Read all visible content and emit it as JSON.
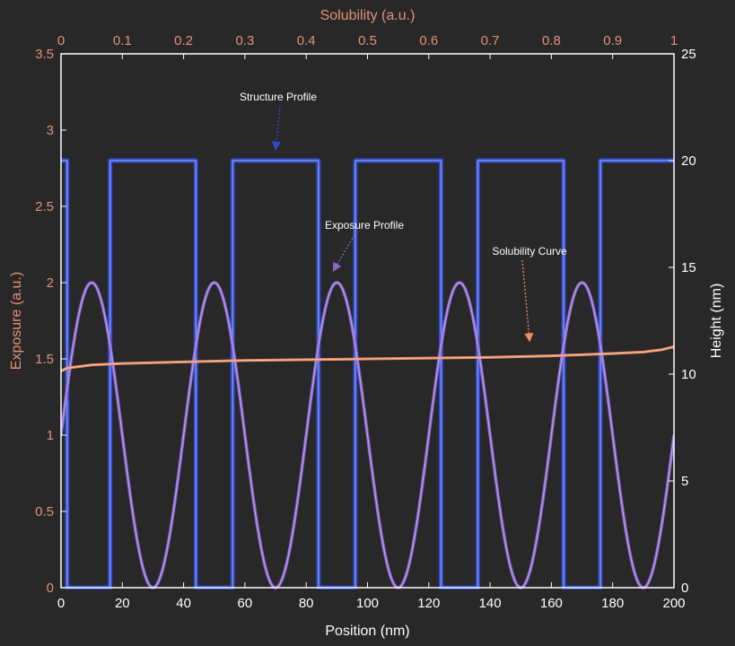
{
  "chart_data": {
    "type": "line",
    "title": "",
    "xlabel": "Position (nm)",
    "xlim": [
      0,
      200
    ],
    "xticks": [
      0,
      20,
      40,
      60,
      80,
      100,
      120,
      140,
      160,
      180,
      200
    ],
    "x2label": "Solubility (a.u.)",
    "x2lim": [
      0,
      1
    ],
    "x2ticks": [
      "0",
      "0.1",
      "0.2",
      "0.3",
      "0.4",
      "0.5",
      "0.6",
      "0.7",
      "0.8",
      "0.9",
      "1"
    ],
    "ylabel": "Exposure (a.u.)",
    "ylim": [
      0,
      3.5
    ],
    "yticks": [
      "0",
      "0.5",
      "1",
      "1.5",
      "2",
      "2.5",
      "3",
      "3.5"
    ],
    "y2label": "Height (nm)",
    "y2lim": [
      0,
      25
    ],
    "y2ticks": [
      "0",
      "5",
      "10",
      "15",
      "20",
      "25"
    ],
    "grid": false,
    "series": [
      {
        "name": "Structure Profile",
        "axis": "x-bottom / y-right",
        "color": "#3348c8",
        "x": [
          0,
          2,
          2,
          16,
          16,
          44,
          44,
          56,
          56,
          84,
          84,
          96,
          96,
          124,
          124,
          136,
          136,
          164,
          164,
          176,
          176,
          200
        ],
        "values": [
          20,
          20,
          0,
          0,
          20,
          20,
          0,
          0,
          20,
          20,
          0,
          0,
          20,
          20,
          0,
          0,
          20,
          20,
          0,
          0,
          20,
          20
        ]
      },
      {
        "name": "Exposure Profile",
        "axis": "x-bottom / y-left",
        "color": "#8a68cc",
        "function": "1 + sin(2*pi*x/40)",
        "amplitude": 1,
        "offset": 1,
        "period": 40,
        "x_range": [
          0,
          200
        ]
      },
      {
        "name": "Solubility Curve",
        "axis": "x-top / y-left",
        "color": "#e8906a",
        "x": [
          0,
          0.01,
          0.05,
          0.1,
          0.2,
          0.3,
          0.4,
          0.5,
          0.6,
          0.7,
          0.8,
          0.9,
          0.95,
          0.98,
          1.0
        ],
        "values": [
          1.42,
          1.44,
          1.46,
          1.47,
          1.48,
          1.49,
          1.495,
          1.5,
          1.505,
          1.51,
          1.52,
          1.535,
          1.545,
          1.56,
          1.58
        ]
      }
    ],
    "annotations": [
      {
        "text": "Structure Profile",
        "arrow_to": [
          70,
          20.3
        ]
      },
      {
        "text": "Exposure Profile",
        "arrow_to": [
          91,
          2.0
        ]
      },
      {
        "text": "Solubility Curve",
        "arrow_to": [
          150,
          1.58
        ]
      }
    ]
  },
  "colors": {
    "background": "#282828",
    "axes": "#ffffff",
    "left_axis_text": "#e2937a",
    "top_axis_text": "#e2937a",
    "right_axis_text": "#ffffff",
    "bottom_axis_text": "#ffffff",
    "structure": "#3348c8",
    "structure_glow": "#8fb0ff",
    "exposure": "#8a68cc",
    "exposure_glow": "#c8b0ff",
    "solubility": "#e8906a",
    "annotation_text": "#ffffff"
  }
}
